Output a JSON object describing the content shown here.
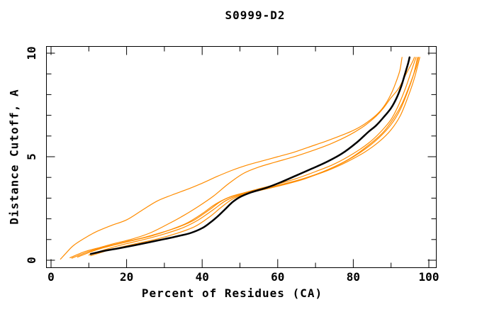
{
  "window": {
    "background": "#ffffff"
  },
  "chart_data": {
    "type": "line",
    "title": "S0999-D2",
    "xlabel": "Percent of Residues (CA)",
    "ylabel": "Distance Cutoff, A",
    "xlim": [
      0,
      100
    ],
    "ylim": [
      0,
      10
    ],
    "grid": false,
    "legend": "none",
    "x_major_ticks": [
      0,
      20,
      40,
      60,
      80,
      100
    ],
    "x_minor_ticks": [
      10,
      30,
      50,
      70,
      90
    ],
    "y_major_ticks": [
      0,
      5,
      10
    ],
    "y_minor_ticks": [
      1,
      2,
      3,
      4,
      6,
      7,
      8,
      9
    ],
    "colors": {
      "highlight": "#000000",
      "other_models": "#ff8c00",
      "axis": "#000000"
    },
    "series": [
      {
        "name": "model-orange-outlier",
        "color": "#ff8c00",
        "width": 1.2,
        "points": [
          [
            2.5,
            0.05
          ],
          [
            4,
            0.35
          ],
          [
            6,
            0.72
          ],
          [
            9,
            1.08
          ],
          [
            12,
            1.38
          ],
          [
            16,
            1.68
          ],
          [
            20,
            1.95
          ],
          [
            24,
            2.4
          ],
          [
            28,
            2.85
          ],
          [
            32,
            3.15
          ],
          [
            36,
            3.42
          ],
          [
            40,
            3.72
          ],
          [
            44,
            4.05
          ],
          [
            48,
            4.35
          ],
          [
            52,
            4.6
          ],
          [
            56,
            4.8
          ],
          [
            60,
            5.0
          ],
          [
            64,
            5.2
          ],
          [
            68,
            5.45
          ],
          [
            72,
            5.7
          ],
          [
            76,
            5.97
          ],
          [
            80,
            6.27
          ],
          [
            83,
            6.58
          ],
          [
            86,
            7.0
          ],
          [
            88,
            7.4
          ],
          [
            89.8,
            7.95
          ],
          [
            91.2,
            8.55
          ],
          [
            92.3,
            9.15
          ],
          [
            92.9,
            9.8
          ]
        ]
      },
      {
        "name": "model-orange-2",
        "color": "#ff8c00",
        "width": 1.2,
        "points": [
          [
            5,
            0.12
          ],
          [
            9,
            0.42
          ],
          [
            13,
            0.62
          ],
          [
            17,
            0.82
          ],
          [
            21,
            1.0
          ],
          [
            26,
            1.3
          ],
          [
            31,
            1.75
          ],
          [
            35,
            2.15
          ],
          [
            39,
            2.6
          ],
          [
            43,
            3.1
          ],
          [
            47,
            3.7
          ],
          [
            51,
            4.2
          ],
          [
            55,
            4.5
          ],
          [
            59,
            4.72
          ],
          [
            64,
            4.98
          ],
          [
            69,
            5.28
          ],
          [
            74,
            5.62
          ],
          [
            79,
            6.05
          ],
          [
            83,
            6.5
          ],
          [
            86,
            6.95
          ],
          [
            88,
            7.35
          ],
          [
            90,
            7.85
          ],
          [
            92,
            8.3
          ],
          [
            94,
            9.0
          ],
          [
            95.6,
            9.55
          ],
          [
            96.2,
            9.8
          ]
        ]
      },
      {
        "name": "model-orange-3",
        "color": "#ff8c00",
        "width": 1.2,
        "points": [
          [
            5.5,
            0.1
          ],
          [
            10,
            0.42
          ],
          [
            15,
            0.68
          ],
          [
            20,
            0.9
          ],
          [
            25,
            1.12
          ],
          [
            30,
            1.38
          ],
          [
            34,
            1.62
          ],
          [
            38,
            1.95
          ],
          [
            42,
            2.45
          ],
          [
            45,
            2.85
          ],
          [
            48,
            3.1
          ],
          [
            52,
            3.3
          ],
          [
            56,
            3.5
          ],
          [
            60,
            3.68
          ],
          [
            65,
            3.95
          ],
          [
            70,
            4.28
          ],
          [
            75,
            4.65
          ],
          [
            80,
            5.15
          ],
          [
            84,
            5.65
          ],
          [
            87,
            6.15
          ],
          [
            90,
            6.8
          ],
          [
            92,
            7.5
          ],
          [
            93.8,
            8.3
          ],
          [
            95.3,
            9.1
          ],
          [
            96.6,
            9.8
          ]
        ]
      },
      {
        "name": "model-orange-4",
        "color": "#ff8c00",
        "width": 1.2,
        "points": [
          [
            7,
            0.15
          ],
          [
            12,
            0.5
          ],
          [
            17,
            0.75
          ],
          [
            22,
            0.97
          ],
          [
            27,
            1.2
          ],
          [
            32,
            1.5
          ],
          [
            36,
            1.8
          ],
          [
            40,
            2.25
          ],
          [
            43,
            2.65
          ],
          [
            46,
            2.95
          ],
          [
            50,
            3.2
          ],
          [
            55,
            3.42
          ],
          [
            60,
            3.62
          ],
          [
            66,
            3.9
          ],
          [
            72,
            4.28
          ],
          [
            78,
            4.78
          ],
          [
            83,
            5.35
          ],
          [
            87,
            5.95
          ],
          [
            90,
            6.55
          ],
          [
            92.5,
            7.3
          ],
          [
            94.5,
            8.2
          ],
          [
            96,
            9.0
          ],
          [
            97,
            9.8
          ]
        ]
      },
      {
        "name": "model-orange-5",
        "color": "#ff8c00",
        "width": 1.2,
        "points": [
          [
            10,
            0.25
          ],
          [
            15,
            0.55
          ],
          [
            20,
            0.8
          ],
          [
            25,
            1.02
          ],
          [
            30,
            1.27
          ],
          [
            35,
            1.58
          ],
          [
            39,
            1.95
          ],
          [
            43,
            2.45
          ],
          [
            46,
            2.85
          ],
          [
            49,
            3.1
          ],
          [
            53,
            3.32
          ],
          [
            58,
            3.5
          ],
          [
            63,
            3.72
          ],
          [
            68,
            4.0
          ],
          [
            73,
            4.32
          ],
          [
            78,
            4.72
          ],
          [
            83,
            5.22
          ],
          [
            87,
            5.75
          ],
          [
            90,
            6.3
          ],
          [
            92.5,
            7.0
          ],
          [
            94.5,
            7.9
          ],
          [
            96.2,
            8.8
          ],
          [
            97.6,
            9.8
          ]
        ]
      },
      {
        "name": "model-orange-6",
        "color": "#ff8c00",
        "width": 1.2,
        "points": [
          [
            10.5,
            0.22
          ],
          [
            16,
            0.52
          ],
          [
            22,
            0.78
          ],
          [
            28,
            1.02
          ],
          [
            33,
            1.28
          ],
          [
            38,
            1.62
          ],
          [
            42,
            2.1
          ],
          [
            45,
            2.55
          ],
          [
            48,
            2.95
          ],
          [
            51,
            3.18
          ],
          [
            56,
            3.4
          ],
          [
            61,
            3.62
          ],
          [
            67,
            3.92
          ],
          [
            73,
            4.35
          ],
          [
            79,
            4.9
          ],
          [
            84,
            5.55
          ],
          [
            88,
            6.2
          ],
          [
            91,
            6.95
          ],
          [
            93,
            7.6
          ],
          [
            95,
            8.5
          ],
          [
            96.6,
            9.3
          ],
          [
            97.3,
            9.8
          ]
        ]
      },
      {
        "name": "model-highlight-black",
        "color": "#000000",
        "width": 2.5,
        "points": [
          [
            10.5,
            0.3
          ],
          [
            14,
            0.45
          ],
          [
            18,
            0.58
          ],
          [
            22,
            0.72
          ],
          [
            26,
            0.87
          ],
          [
            30,
            1.02
          ],
          [
            34,
            1.18
          ],
          [
            37,
            1.32
          ],
          [
            40,
            1.55
          ],
          [
            42,
            1.8
          ],
          [
            44,
            2.1
          ],
          [
            46,
            2.45
          ],
          [
            48,
            2.8
          ],
          [
            50,
            3.05
          ],
          [
            53,
            3.28
          ],
          [
            57,
            3.5
          ],
          [
            61,
            3.78
          ],
          [
            65,
            4.1
          ],
          [
            69,
            4.42
          ],
          [
            73,
            4.75
          ],
          [
            77,
            5.15
          ],
          [
            81,
            5.7
          ],
          [
            84,
            6.2
          ],
          [
            86,
            6.5
          ],
          [
            88,
            6.9
          ],
          [
            90,
            7.35
          ],
          [
            91.5,
            7.85
          ],
          [
            92.7,
            8.4
          ],
          [
            93.7,
            9.0
          ],
          [
            94.5,
            9.5
          ],
          [
            94.9,
            9.8
          ]
        ]
      }
    ]
  }
}
